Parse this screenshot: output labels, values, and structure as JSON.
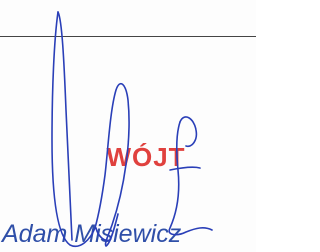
{
  "stamp": {
    "title": "WÓJT",
    "name": "Adam Misiewicz"
  }
}
